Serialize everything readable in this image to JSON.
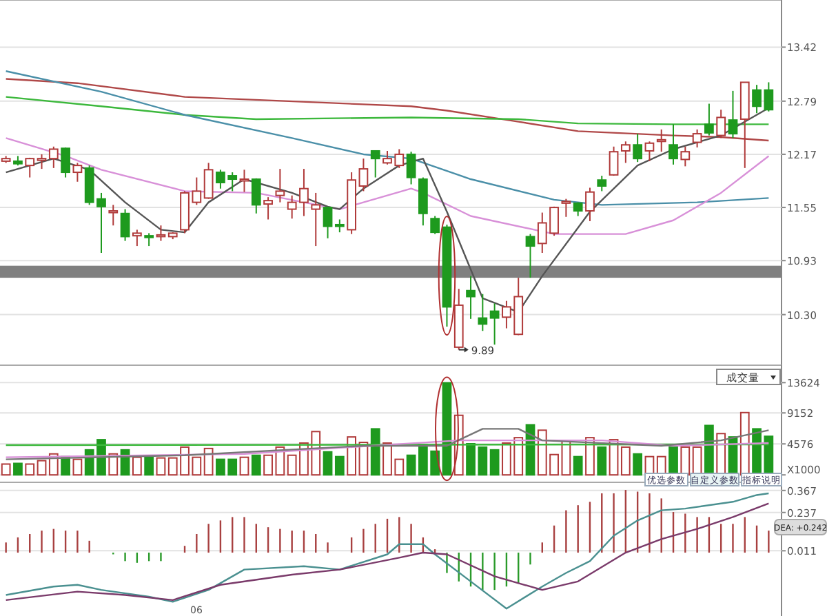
{
  "chart_data": [
    {
      "type": "candlestick",
      "categories": [
        null,
        null,
        null,
        null,
        null,
        null,
        null,
        null,
        null,
        null,
        null,
        null,
        null,
        null,
        null,
        null,
        null,
        null,
        null,
        null,
        null,
        null,
        null,
        null,
        null,
        null,
        null,
        null,
        null,
        null,
        null,
        null,
        null,
        null,
        null,
        null,
        null,
        null,
        null,
        null,
        null,
        null,
        null,
        null,
        null,
        null,
        null,
        null,
        null,
        null,
        null,
        null,
        null,
        null,
        null,
        null,
        null,
        null,
        null,
        null,
        null,
        null,
        null,
        null,
        null
      ],
      "ohlc": [
        [
          12.09,
          12.15,
          12.07,
          12.12
        ],
        [
          12.09,
          12.15,
          12.04,
          12.06
        ],
        [
          12.04,
          12.13,
          11.9,
          12.12
        ],
        [
          12.1,
          12.17,
          12.0,
          12.12
        ],
        [
          12.12,
          12.26,
          12.01,
          12.23
        ],
        [
          12.24,
          12.25,
          11.9,
          11.96
        ],
        [
          11.96,
          12.07,
          11.85,
          12.04
        ],
        [
          12.01,
          12.04,
          11.58,
          11.61
        ],
        [
          11.65,
          11.72,
          11.02,
          11.56
        ],
        [
          11.49,
          11.58,
          11.34,
          11.51
        ],
        [
          11.48,
          11.53,
          11.16,
          11.21
        ],
        [
          11.22,
          11.29,
          11.1,
          11.25
        ],
        [
          11.22,
          11.25,
          11.1,
          11.2
        ],
        [
          11.21,
          11.34,
          11.16,
          11.23
        ],
        [
          11.21,
          11.26,
          11.18,
          11.25
        ],
        [
          11.29,
          11.74,
          11.25,
          11.72
        ],
        [
          11.61,
          11.9,
          11.58,
          11.74
        ],
        [
          11.66,
          12.07,
          11.65,
          11.99
        ],
        [
          11.96,
          11.99,
          11.77,
          11.84
        ],
        [
          11.92,
          11.96,
          11.74,
          11.88
        ],
        [
          11.86,
          11.99,
          11.73,
          11.88
        ],
        [
          11.88,
          11.89,
          11.48,
          11.58
        ],
        [
          11.59,
          11.67,
          11.41,
          11.63
        ],
        [
          11.69,
          12.0,
          11.61,
          11.74
        ],
        [
          11.53,
          11.69,
          11.42,
          11.61
        ],
        [
          11.61,
          12.0,
          11.45,
          11.77
        ],
        [
          11.53,
          11.72,
          11.1,
          11.58
        ],
        [
          11.55,
          11.56,
          11.19,
          11.33
        ],
        [
          11.35,
          11.41,
          11.26,
          11.33
        ],
        [
          11.29,
          11.96,
          11.24,
          11.87
        ],
        [
          11.8,
          12.12,
          11.74,
          12.0
        ],
        [
          12.21,
          12.21,
          11.9,
          12.12
        ],
        [
          12.07,
          12.21,
          12.05,
          12.12
        ],
        [
          12.04,
          12.23,
          12.01,
          12.17
        ],
        [
          12.17,
          12.2,
          11.82,
          11.9
        ],
        [
          11.88,
          11.9,
          11.34,
          11.48
        ],
        [
          11.42,
          11.45,
          11.24,
          11.26
        ],
        [
          11.32,
          11.35,
          10.16,
          10.39
        ],
        [
          9.92,
          10.6,
          9.89,
          10.41
        ],
        [
          10.58,
          10.75,
          10.25,
          10.51
        ],
        [
          10.26,
          10.54,
          10.11,
          10.19
        ],
        [
          10.34,
          10.43,
          9.95,
          10.26
        ],
        [
          10.27,
          10.46,
          10.14,
          10.39
        ],
        [
          10.07,
          10.73,
          10.06,
          10.51
        ],
        [
          11.21,
          11.24,
          10.73,
          11.1
        ],
        [
          11.13,
          11.49,
          11.02,
          11.37
        ],
        [
          11.25,
          11.56,
          11.22,
          11.55
        ],
        [
          11.6,
          11.65,
          11.44,
          11.62
        ],
        [
          11.6,
          11.61,
          11.45,
          11.51
        ],
        [
          11.51,
          11.78,
          11.39,
          11.73
        ],
        [
          11.87,
          11.92,
          11.74,
          11.8
        ],
        [
          11.93,
          12.26,
          11.92,
          12.2
        ],
        [
          12.21,
          12.32,
          12.07,
          12.28
        ],
        [
          12.28,
          12.41,
          12.08,
          12.12
        ],
        [
          12.21,
          12.32,
          12.09,
          12.3
        ],
        [
          12.32,
          12.46,
          12.2,
          12.34
        ],
        [
          12.28,
          12.52,
          12.05,
          12.12
        ],
        [
          12.11,
          12.26,
          12.03,
          12.2
        ],
        [
          12.31,
          12.46,
          12.25,
          12.41
        ],
        [
          12.52,
          12.76,
          12.39,
          12.42
        ],
        [
          12.39,
          12.69,
          12.36,
          12.6
        ],
        [
          12.57,
          12.91,
          12.36,
          12.41
        ],
        [
          12.58,
          13.01,
          12.01,
          13.01
        ],
        [
          12.92,
          12.98,
          12.65,
          12.73
        ],
        [
          12.92,
          13.01,
          12.67,
          12.69
        ]
      ],
      "series": [
        {
          "type": "line",
          "color": "#b04848",
          "values": [
            13.05,
            null,
            null,
            null,
            null,
            null,
            13.0,
            null,
            null,
            null,
            null,
            null,
            null,
            null,
            null,
            12.84,
            null,
            null,
            null,
            null,
            null,
            null,
            null,
            null,
            null,
            null,
            null,
            null,
            null,
            null,
            null,
            null,
            null,
            null,
            12.73,
            null,
            null,
            12.68,
            null,
            null,
            null,
            null,
            null,
            12.55,
            null,
            null,
            null,
            null,
            12.44,
            null,
            null,
            null,
            null,
            null,
            null,
            null,
            12.39,
            null,
            null,
            null,
            12.37,
            null,
            null,
            null,
            12.33
          ]
        },
        {
          "type": "line",
          "color": "#3cb83c",
          "values": [
            12.84,
            null,
            null,
            null,
            null,
            null,
            null,
            null,
            12.73,
            null,
            null,
            null,
            null,
            null,
            null,
            12.63,
            null,
            null,
            null,
            null,
            null,
            12.58,
            null,
            null,
            null,
            null,
            null,
            null,
            null,
            null,
            null,
            null,
            null,
            null,
            12.6,
            null,
            null,
            null,
            null,
            null,
            null,
            null,
            null,
            12.58,
            null,
            null,
            null,
            null,
            12.53,
            null,
            null,
            null,
            null,
            null,
            null,
            null,
            12.52,
            null,
            null,
            null,
            null,
            null,
            null,
            null,
            12.52
          ]
        },
        {
          "type": "line",
          "color": "#4a8fa8",
          "values": [
            13.14,
            null,
            null,
            null,
            null,
            null,
            null,
            null,
            12.9,
            null,
            null,
            null,
            null,
            null,
            null,
            12.63,
            null,
            null,
            null,
            null,
            null,
            null,
            null,
            null,
            12.36,
            null,
            null,
            null,
            null,
            null,
            12.17,
            null,
            null,
            null,
            12.12,
            null,
            null,
            null,
            null,
            11.88,
            null,
            null,
            null,
            null,
            null,
            null,
            11.64,
            null,
            null,
            null,
            11.58,
            null,
            null,
            null,
            null,
            null,
            null,
            null,
            11.61,
            null,
            null,
            null,
            null,
            null,
            11.66
          ]
        },
        {
          "type": "line",
          "color": "#d890d8",
          "values": [
            12.36,
            null,
            null,
            null,
            null,
            12.15,
            null,
            null,
            11.99,
            null,
            null,
            null,
            null,
            null,
            null,
            11.74,
            null,
            null,
            null,
            null,
            null,
            11.72,
            null,
            null,
            null,
            11.61,
            null,
            null,
            11.53,
            null,
            11.61,
            null,
            null,
            null,
            11.77,
            11.72,
            null,
            null,
            null,
            11.45,
            null,
            null,
            null,
            null,
            null,
            null,
            11.24,
            null,
            null,
            null,
            null,
            null,
            11.24,
            null,
            null,
            null,
            11.4,
            null,
            null,
            null,
            11.72,
            null,
            null,
            null,
            12.15
          ]
        },
        {
          "type": "line",
          "color": "#555555",
          "values": [
            11.96,
            null,
            null,
            null,
            12.12,
            null,
            null,
            11.99,
            null,
            null,
            11.61,
            null,
            null,
            11.29,
            null,
            11.26,
            null,
            11.61,
            null,
            null,
            11.88,
            null,
            null,
            null,
            11.72,
            null,
            null,
            11.56,
            11.53,
            null,
            11.77,
            null,
            null,
            12.04,
            null,
            12.12,
            null,
            11.5,
            null,
            null,
            10.49,
            null,
            null,
            10.33,
            null,
            10.75,
            null,
            null,
            null,
            11.5,
            null,
            null,
            null,
            12.04,
            null,
            null,
            12.23,
            null,
            null,
            null,
            12.39,
            null,
            null,
            null,
            12.71
          ]
        }
      ],
      "bands": [
        {
          "axis": "y",
          "from": 10.73,
          "to": 10.87,
          "color": "#808080"
        }
      ],
      "annotations": [
        "9.89"
      ],
      "ylim": [
        9.71,
        13.97
      ],
      "yticks": [
        {
          "value": 10.3,
          "label": "10.30"
        },
        {
          "value": 10.93,
          "label": "10.93"
        },
        {
          "value": 11.55,
          "label": "11.55"
        },
        {
          "value": 12.17,
          "label": "12.17"
        },
        {
          "value": 12.79,
          "label": "12.79"
        },
        {
          "value": 13.42,
          "label": "13.42"
        }
      ],
      "grid": "y",
      "tick_labels": "y"
    },
    {
      "type": "bar",
      "categories": [
        null,
        null,
        null,
        null,
        null,
        null,
        null,
        null,
        null,
        null,
        null,
        null,
        null,
        null,
        null,
        null,
        null,
        null,
        null,
        null,
        null,
        null,
        null,
        null,
        null,
        null,
        null,
        null,
        null,
        null,
        null,
        null,
        null,
        null,
        null,
        null,
        null,
        null,
        null,
        null,
        null,
        null,
        null,
        null,
        null,
        null,
        null,
        null,
        null,
        null,
        null,
        null,
        null,
        null,
        null,
        null,
        null,
        null,
        null,
        null,
        null,
        null,
        null,
        null,
        null
      ],
      "series": [
        {
          "type": "bar",
          "values": [
            1600,
            1700,
            1600,
            2100,
            3100,
            2700,
            2300,
            3700,
            5200,
            3100,
            3700,
            2600,
            2600,
            2500,
            2500,
            4100,
            2600,
            3900,
            2300,
            2300,
            2600,
            2900,
            2900,
            4100,
            2900,
            4700,
            6400,
            3400,
            2700,
            5600,
            4800,
            6800,
            4700,
            2300,
            2900,
            4500,
            3500,
            13600,
            8800,
            4600,
            4100,
            3700,
            4700,
            5500,
            7400,
            6600,
            3000,
            5100,
            2700,
            5500,
            4100,
            5200,
            4100,
            3100,
            2700,
            2700,
            4300,
            4100,
            4100,
            7300,
            6100,
            5600,
            9200,
            6800,
            5700
          ],
          "colors": [
            "#b03a3a",
            "#1e9a1e",
            "#b03a3a",
            "#b03a3a",
            "#b03a3a",
            "#1e9a1e",
            "#b03a3a",
            "#1e9a1e",
            "#1e9a1e",
            "#b03a3a",
            "#1e9a1e",
            "#b03a3a",
            "#1e9a1e",
            "#b03a3a",
            "#b03a3a",
            "#b03a3a",
            "#b03a3a",
            "#b03a3a",
            "#1e9a1e",
            "#1e9a1e",
            "#b03a3a",
            "#1e9a1e",
            "#b03a3a",
            "#b03a3a",
            "#b03a3a",
            "#b03a3a",
            "#b03a3a",
            "#1e9a1e",
            "#1e9a1e",
            "#b03a3a",
            "#b03a3a",
            "#1e9a1e",
            "#b03a3a",
            "#b03a3a",
            "#1e9a1e",
            "#1e9a1e",
            "#1e9a1e",
            "#1e9a1e",
            "#b03a3a",
            "#1e9a1e",
            "#1e9a1e",
            "#1e9a1e",
            "#b03a3a",
            "#b03a3a",
            "#1e9a1e",
            "#b03a3a",
            "#b03a3a",
            "#b03a3a",
            "#1e9a1e",
            "#b03a3a",
            "#1e9a1e",
            "#b03a3a",
            "#b03a3a",
            "#1e9a1e",
            "#b03a3a",
            "#b03a3a",
            "#1e9a1e",
            "#b03a3a",
            "#b03a3a",
            "#1e9a1e",
            "#b03a3a",
            "#1e9a1e",
            "#b03a3a",
            "#1e9a1e",
            "#1e9a1e"
          ]
        },
        {
          "type": "line",
          "color": "#3cb83c",
          "values": [
            4400,
            null,
            null,
            null,
            null,
            null,
            null,
            null,
            null,
            null,
            null,
            null,
            null,
            null,
            null,
            null,
            null,
            null,
            null,
            null,
            null,
            null,
            null,
            null,
            null,
            null,
            null,
            null,
            null,
            null,
            null,
            null,
            null,
            null,
            null,
            null,
            null,
            null,
            null,
            null,
            null,
            null,
            null,
            null,
            null,
            null,
            null,
            null,
            null,
            null,
            null,
            null,
            null,
            null,
            null,
            null,
            null,
            null,
            null,
            null,
            null,
            null,
            null,
            null,
            4500
          ]
        },
        {
          "type": "line",
          "color": "#d890d8",
          "values": [
            2600,
            null,
            null,
            null,
            null,
            null,
            null,
            null,
            null,
            null,
            null,
            null,
            null,
            null,
            null,
            null,
            null,
            null,
            null,
            null,
            3100,
            null,
            null,
            null,
            null,
            null,
            null,
            null,
            null,
            null,
            null,
            null,
            null,
            null,
            null,
            null,
            null,
            null,
            5100,
            null,
            null,
            null,
            null,
            null,
            null,
            null,
            null,
            null,
            null,
            null,
            5100,
            null,
            null,
            null,
            null,
            null,
            4300,
            null,
            null,
            null,
            null,
            null,
            null,
            null,
            4700
          ]
        },
        {
          "type": "line",
          "color": "#777777",
          "values": [
            2300,
            null,
            null,
            null,
            null,
            null,
            null,
            null,
            null,
            null,
            null,
            null,
            null,
            null,
            null,
            2900,
            null,
            null,
            null,
            null,
            null,
            null,
            null,
            null,
            null,
            null,
            null,
            null,
            null,
            null,
            4300,
            null,
            null,
            null,
            null,
            null,
            null,
            4300,
            null,
            null,
            6800,
            null,
            null,
            6800,
            null,
            5100,
            null,
            null,
            null,
            null,
            null,
            null,
            null,
            null,
            null,
            4300,
            null,
            null,
            null,
            null,
            5100,
            null,
            null,
            null,
            6600
          ]
        }
      ],
      "annotations": [
        "成交量"
      ],
      "ylim": [
        0,
        16200
      ],
      "yticks": [
        {
          "value": 0,
          "label": "X1000"
        },
        4576,
        9152,
        13624
      ],
      "grid": "y",
      "tick_labels": "y"
    },
    {
      "type": "bar",
      "categories": [
        null,
        null,
        null,
        null,
        null,
        null,
        null,
        null,
        null,
        null,
        null,
        null,
        null,
        null,
        null,
        null,
        null,
        null,
        null,
        null,
        null,
        null,
        null,
        null,
        null,
        null,
        null,
        null,
        null,
        null,
        null,
        null,
        null,
        null,
        null,
        null,
        null,
        null,
        null,
        null,
        null,
        null,
        null,
        null,
        null,
        null,
        null,
        null,
        null,
        null,
        null,
        null,
        null,
        null,
        null,
        null,
        null,
        null,
        null,
        null,
        null,
        null,
        null,
        null,
        null
      ],
      "series": [
        {
          "type": "bar",
          "values": [
            0.06,
            0.09,
            0.11,
            0.13,
            0.14,
            0.13,
            0.13,
            0.07,
            0,
            -0.01,
            -0.05,
            -0.06,
            -0.05,
            -0.05,
            0,
            0.04,
            0.11,
            0.17,
            0.19,
            0.21,
            0.21,
            0.17,
            0.15,
            0.14,
            0.13,
            0.13,
            0.11,
            0.06,
            0,
            0.09,
            0.14,
            0.17,
            0.2,
            0.21,
            0.17,
            0.09,
            0.02,
            -0.12,
            -0.17,
            -0.2,
            -0.22,
            -0.22,
            -0.2,
            -0.18,
            -0.07,
            0.06,
            0.16,
            0.25,
            0.28,
            0.3,
            0.35,
            0.35,
            0.37,
            0.36,
            0.35,
            0.32,
            0.24,
            0.23,
            0.21,
            0.21,
            0.17,
            0.17,
            0.21,
            0.16,
            0.13
          ],
          "colors": [
            "#a84040",
            "#a84040",
            "#a84040",
            "#a84040",
            "#a84040",
            "#a84040",
            "#a84040",
            "#a84040",
            "#a84040",
            "#2a9a2a",
            "#2a9a2a",
            "#2a9a2a",
            "#2a9a2a",
            "#2a9a2a",
            "#a84040",
            "#a84040",
            "#a84040",
            "#a84040",
            "#a84040",
            "#a84040",
            "#a84040",
            "#a84040",
            "#a84040",
            "#a84040",
            "#a84040",
            "#a84040",
            "#a84040",
            "#a84040",
            "#a84040",
            "#a84040",
            "#a84040",
            "#a84040",
            "#a84040",
            "#a84040",
            "#a84040",
            "#a84040",
            "#a84040",
            "#2a9a2a",
            "#2a9a2a",
            "#2a9a2a",
            "#2a9a2a",
            "#2a9a2a",
            "#2a9a2a",
            "#2a9a2a",
            "#2a9a2a",
            "#a84040",
            "#a84040",
            "#a84040",
            "#a84040",
            "#a84040",
            "#a84040",
            "#a84040",
            "#a84040",
            "#a84040",
            "#a84040",
            "#a84040",
            "#a84040",
            "#a84040",
            "#a84040",
            "#a84040",
            "#a84040",
            "#a84040",
            "#a84040",
            "#a84040",
            "#a84040"
          ]
        },
        {
          "type": "line",
          "color": "#4a9090",
          "values": [
            -0.25,
            null,
            null,
            null,
            -0.2,
            null,
            -0.19,
            null,
            -0.22,
            null,
            null,
            null,
            -0.26,
            null,
            -0.29,
            null,
            null,
            -0.22,
            null,
            null,
            -0.1,
            null,
            null,
            null,
            null,
            -0.08,
            null,
            null,
            -0.1,
            null,
            null,
            null,
            -0.01,
            0.05,
            null,
            0.05,
            -0.01,
            null,
            null,
            -0.17,
            null,
            null,
            -0.33,
            null,
            null,
            -0.2,
            null,
            -0.12,
            null,
            -0.05,
            null,
            0.1,
            null,
            0.19,
            null,
            0.25,
            null,
            0.26,
            null,
            null,
            null,
            0.3,
            null,
            0.34,
            0.35
          ]
        },
        {
          "type": "line",
          "color": "#7a3a6a",
          "values": [
            -0.28,
            null,
            null,
            null,
            null,
            null,
            -0.23,
            null,
            null,
            null,
            -0.25,
            null,
            null,
            null,
            -0.28,
            null,
            null,
            null,
            -0.19,
            null,
            null,
            null,
            null,
            null,
            -0.13,
            null,
            null,
            null,
            -0.1,
            null,
            null,
            null,
            null,
            -0.03,
            null,
            0,
            null,
            -0.01,
            null,
            null,
            null,
            -0.14,
            null,
            null,
            null,
            -0.22,
            null,
            null,
            -0.17,
            null,
            null,
            null,
            0,
            null,
            null,
            0.08,
            null,
            null,
            0.14,
            null,
            null,
            0.21,
            null,
            null,
            0.29
          ]
        }
      ],
      "annotations": [
        "优选参数",
        "自定义参数",
        "指标说明",
        "DEA: +0.242",
        "06"
      ],
      "ylim": [
        -0.374,
        0.415
      ],
      "yticks": [
        0.011,
        0.237,
        0.367
      ],
      "grid": "y",
      "tick_labels": "y"
    }
  ]
}
